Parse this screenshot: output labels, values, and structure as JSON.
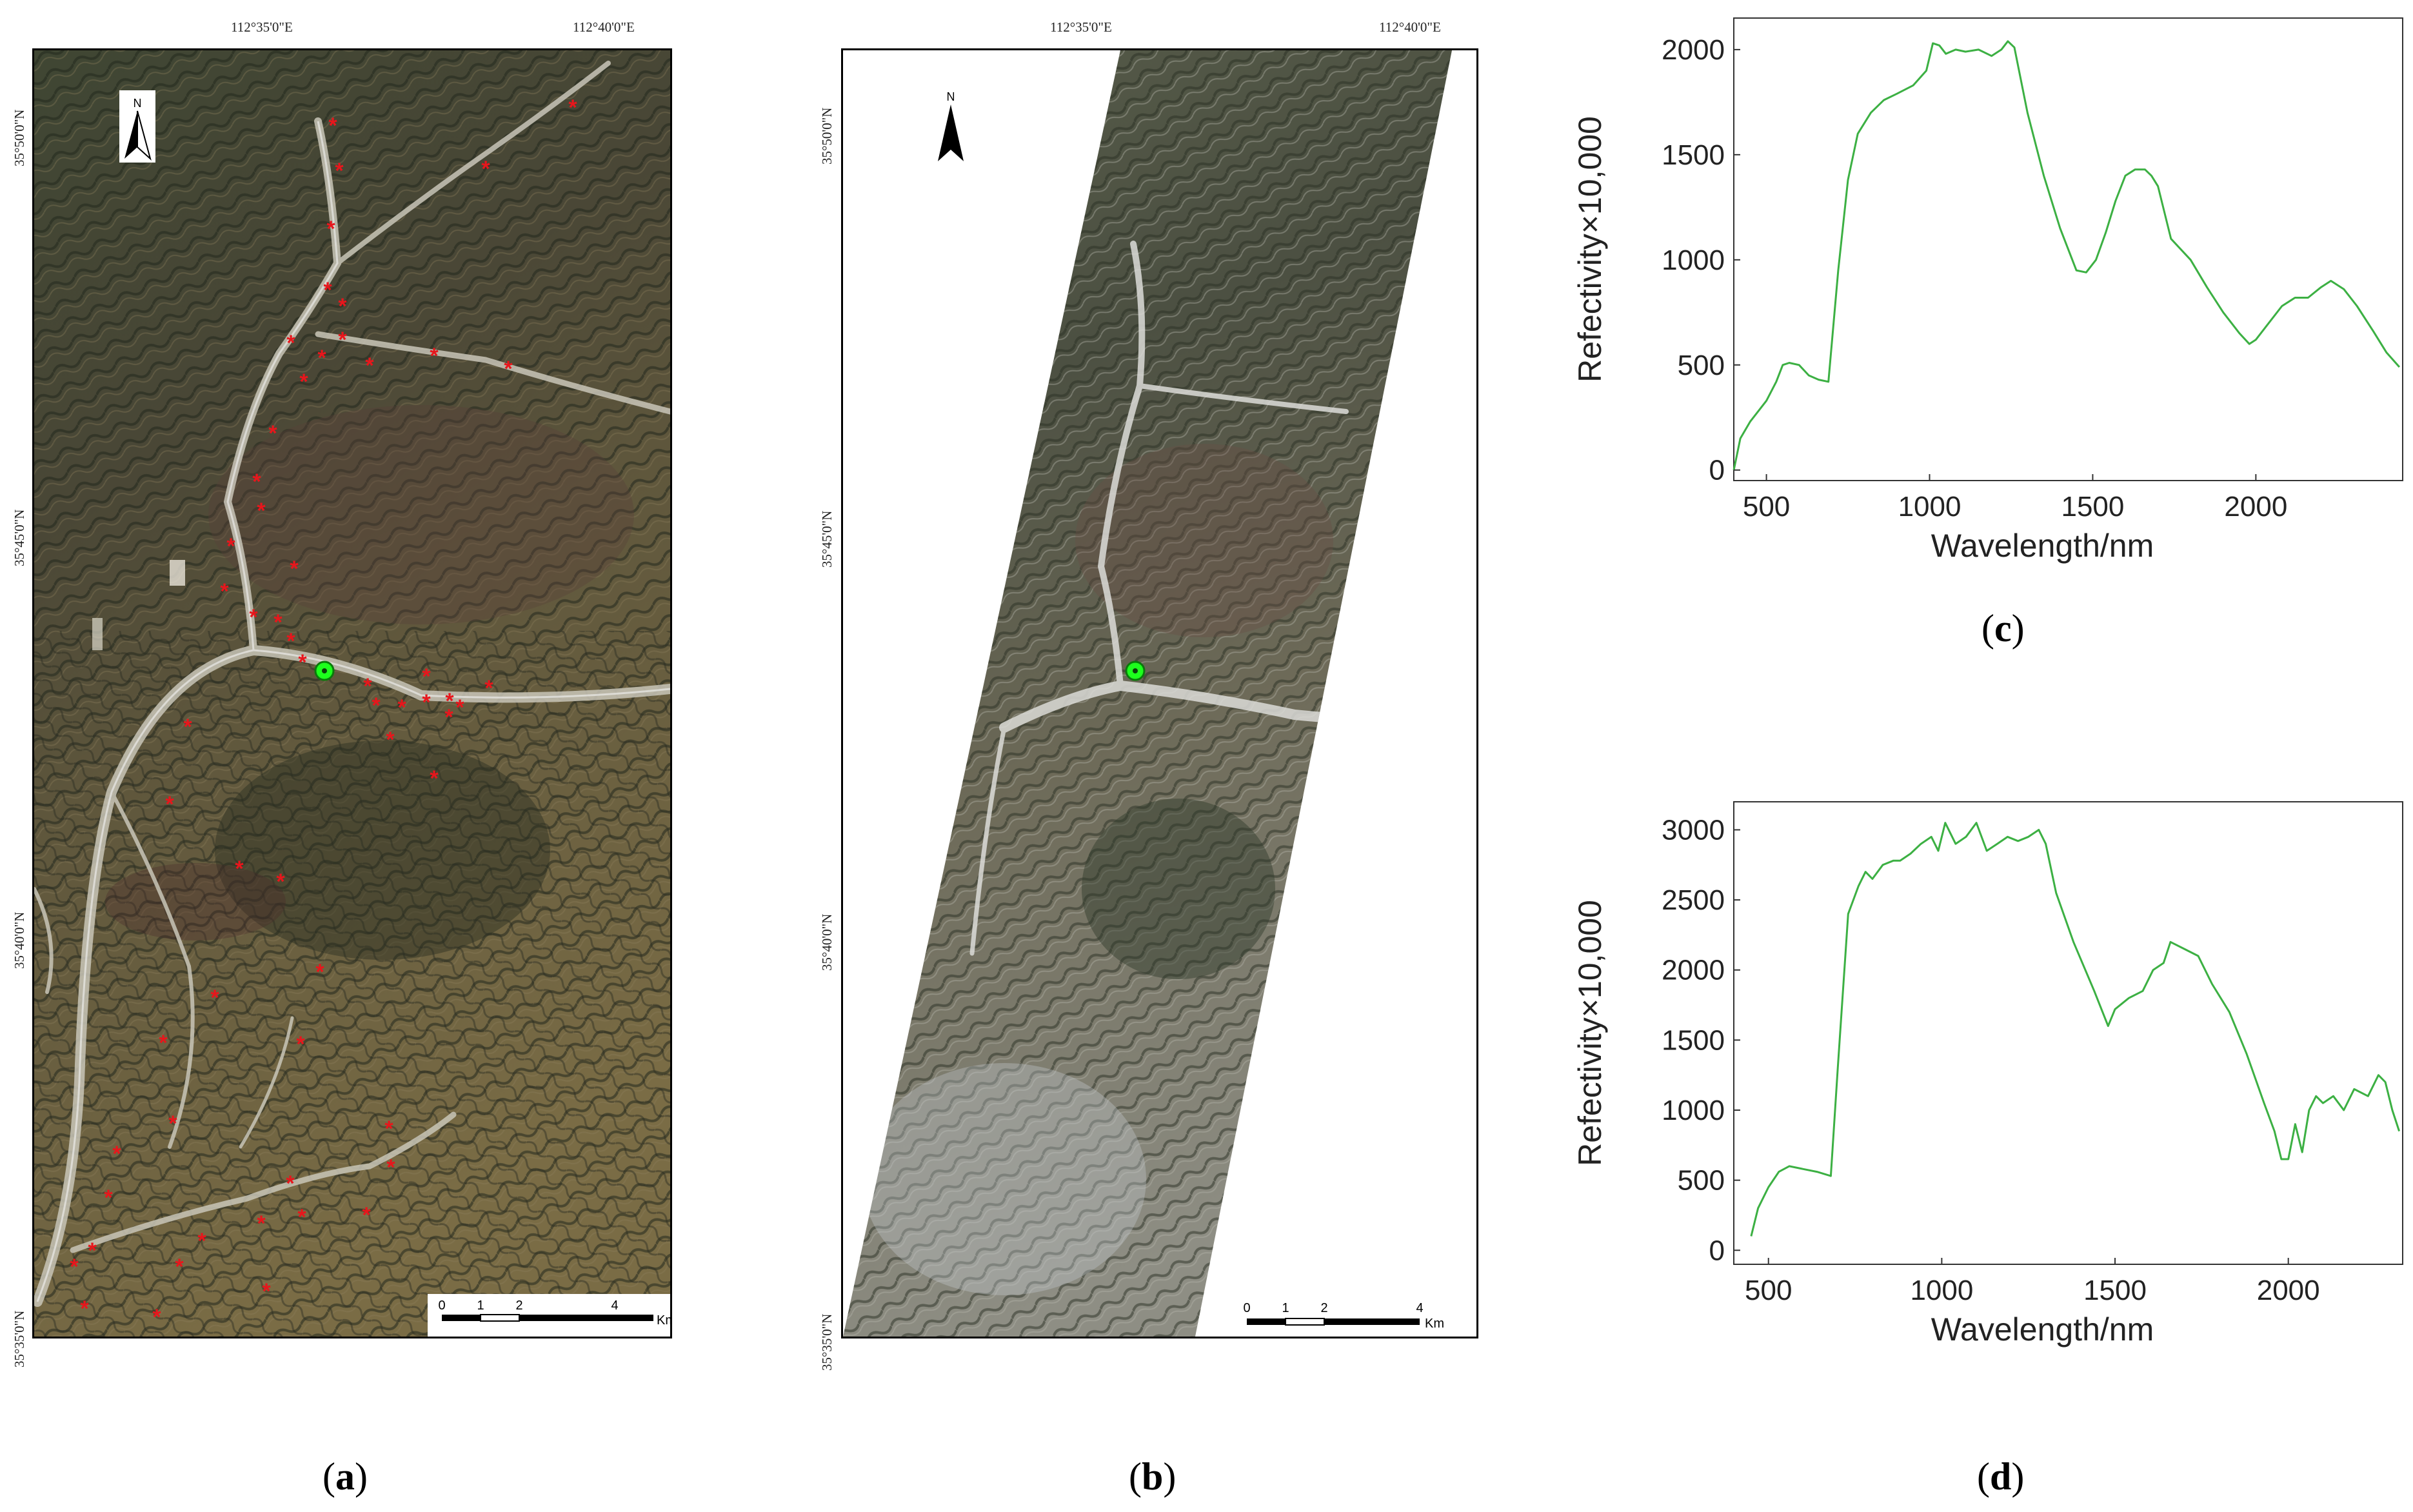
{
  "panel_a": {
    "label_open": "(",
    "label_letter": "a",
    "label_close": ")",
    "top_lon_1": "112°35'0\"E",
    "top_lon_2": "112°40'0\"E",
    "lat_1": "35°50'0\"N",
    "lat_2": "35°45'0\"N",
    "lat_3": "35°40'0\"N",
    "lat_4": "35°35'0\"N",
    "north": "N",
    "scale_ticks": [
      "0",
      "1",
      "2",
      "4"
    ],
    "scale_unit": "Km",
    "colors": {
      "sample_marker": "#e8161c",
      "target_marker": "#1dff1d"
    }
  },
  "panel_b": {
    "label_open": "(",
    "label_letter": "b",
    "label_close": ")",
    "top_lon_1": "112°35'0\"E",
    "top_lon_2": "112°40'0\"E",
    "lat_1": "35°50'0\"N",
    "lat_2": "35°45'0\"N",
    "lat_3": "35°40'0\"N",
    "lat_4": "35°35'0\"N",
    "north": "N",
    "scale_ticks": [
      "0",
      "1",
      "2",
      "4"
    ],
    "scale_unit": "Km"
  },
  "panel_c": {
    "label_open": "(",
    "label_letter": "c",
    "label_close": ")"
  },
  "panel_d": {
    "label_open": "(",
    "label_letter": "d",
    "label_close": ")"
  },
  "chart_data": [
    {
      "type": "line",
      "xlabel": "Wavelength/nm",
      "ylabel": "Refectivity×10,000",
      "xlim": [
        400,
        2450
      ],
      "ylim": [
        -50,
        2150
      ],
      "xticks": [
        500,
        1000,
        1500,
        2000
      ],
      "yticks": [
        0,
        500,
        1000,
        1500,
        2000
      ],
      "color": "#3cb043",
      "series": [
        {
          "x": [
            400,
            420,
            450,
            480,
            500,
            530,
            550,
            570,
            600,
            630,
            660,
            690,
            720,
            750,
            780,
            820,
            860,
            900,
            950,
            990,
            1010,
            1030,
            1050,
            1080,
            1110,
            1150,
            1190,
            1220,
            1240,
            1260,
            1300,
            1350,
            1400,
            1450,
            1480,
            1510,
            1540,
            1570,
            1600,
            1630,
            1660,
            1680,
            1700,
            1740,
            1800,
            1850,
            1900,
            1950,
            1980,
            2000,
            2030,
            2080,
            2120,
            2160,
            2200,
            2230,
            2270,
            2310,
            2360,
            2400,
            2440
          ],
          "y": [
            0,
            150,
            230,
            290,
            330,
            420,
            500,
            510,
            500,
            450,
            430,
            420,
            950,
            1380,
            1600,
            1700,
            1760,
            1790,
            1830,
            1900,
            2030,
            2020,
            1980,
            2000,
            1990,
            2000,
            1970,
            2000,
            2040,
            2010,
            1700,
            1400,
            1150,
            950,
            940,
            1000,
            1130,
            1280,
            1400,
            1430,
            1430,
            1400,
            1350,
            1100,
            1000,
            870,
            750,
            650,
            600,
            620,
            680,
            780,
            820,
            820,
            870,
            900,
            860,
            780,
            660,
            560,
            490
          ]
        }
      ]
    },
    {
      "type": "line",
      "xlabel": "Wavelength/nm",
      "ylabel": "Refectivity×10,000",
      "xlim": [
        400,
        2330
      ],
      "ylim": [
        -100,
        3200
      ],
      "xticks": [
        500,
        1000,
        1500,
        2000
      ],
      "yticks": [
        0,
        500,
        1000,
        1500,
        2000,
        2500,
        3000
      ],
      "color": "#3cb043",
      "series": [
        {
          "x": [
            450,
            470,
            500,
            530,
            560,
            600,
            640,
            680,
            700,
            730,
            760,
            780,
            800,
            830,
            860,
            880,
            910,
            940,
            970,
            990,
            1010,
            1040,
            1070,
            1100,
            1130,
            1160,
            1190,
            1220,
            1250,
            1280,
            1300,
            1330,
            1380,
            1440,
            1480,
            1500,
            1540,
            1580,
            1610,
            1640,
            1660,
            1700,
            1740,
            1780,
            1830,
            1880,
            1930,
            1960,
            1980,
            2000,
            2020,
            2040,
            2060,
            2080,
            2100,
            2130,
            2160,
            2190,
            2230,
            2260,
            2280,
            2300,
            2320
          ],
          "y": [
            100,
            300,
            450,
            560,
            600,
            580,
            560,
            530,
            1300,
            2400,
            2600,
            2700,
            2650,
            2750,
            2780,
            2780,
            2830,
            2900,
            2950,
            2850,
            3050,
            2900,
            2950,
            3050,
            2850,
            2900,
            2950,
            2920,
            2950,
            3000,
            2900,
            2550,
            2200,
            1850,
            1600,
            1720,
            1800,
            1850,
            2000,
            2050,
            2200,
            2150,
            2100,
            1900,
            1700,
            1400,
            1050,
            850,
            650,
            650,
            900,
            700,
            1000,
            1100,
            1050,
            1100,
            1000,
            1150,
            1100,
            1250,
            1200,
            1000,
            850
          ]
        }
      ]
    }
  ]
}
